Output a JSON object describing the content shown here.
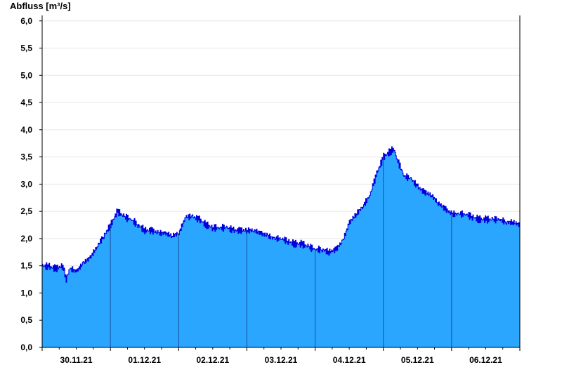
{
  "chart_data": {
    "type": "area",
    "title": "",
    "ylabel": "Abfluss [m³/s]",
    "xlabel": "",
    "ylim": [
      0,
      6.1
    ],
    "yticks": [
      "0,0",
      "0,5",
      "1,0",
      "1,5",
      "2,0",
      "2,5",
      "3,0",
      "3,5",
      "4,0",
      "4,5",
      "5,0",
      "5,5",
      "6,0"
    ],
    "ytick_values": [
      0,
      0.5,
      1,
      1.5,
      2,
      2.5,
      3,
      3.5,
      4,
      4.5,
      5,
      5.5,
      6
    ],
    "x_unit": "days",
    "xlim": [
      0,
      7
    ],
    "xticks": [
      "30.11.21",
      "01.12.21",
      "02.12.21",
      "03.12.21",
      "04.12.21",
      "05.12.21",
      "06.12.21"
    ],
    "xtick_values": [
      0.5,
      1.5,
      2.5,
      3.5,
      4.5,
      5.5,
      6.5
    ],
    "day_boundaries": [
      1,
      2,
      3,
      4,
      5,
      6
    ],
    "grid": true,
    "colors": {
      "fill": "#2aa6ff",
      "line": "#0000dd",
      "grid": "#e6e6e6",
      "axis": "#000000"
    },
    "series": [
      {
        "x": [
          0,
          0.1,
          0.2,
          0.3,
          0.35,
          0.4,
          0.5,
          0.6,
          0.7,
          0.8,
          0.9,
          1.0,
          1.1,
          1.2,
          1.3,
          1.4,
          1.5,
          1.6,
          1.7,
          1.8,
          1.9,
          2.0,
          2.1,
          2.2,
          2.3,
          2.4,
          2.5,
          2.6,
          2.7,
          2.8,
          2.9,
          3.0,
          3.1,
          3.2,
          3.3,
          3.4,
          3.5,
          3.6,
          3.7,
          3.8,
          3.9,
          4.0,
          4.1,
          4.2,
          4.3,
          4.4,
          4.5,
          4.6,
          4.7,
          4.8,
          4.85,
          4.9,
          5.0,
          5.1,
          5.15,
          5.2,
          5.3,
          5.4,
          5.5,
          5.6,
          5.7,
          5.8,
          5.9,
          6.0,
          6.1,
          6.2,
          6.3,
          6.4,
          6.5,
          6.6,
          6.7,
          6.8,
          6.9,
          7.0
        ],
        "y": [
          1.5,
          1.48,
          1.45,
          1.5,
          1.25,
          1.45,
          1.4,
          1.55,
          1.65,
          1.85,
          2.05,
          2.25,
          2.5,
          2.4,
          2.35,
          2.25,
          2.15,
          2.15,
          2.1,
          2.1,
          2.05,
          2.1,
          2.4,
          2.4,
          2.35,
          2.25,
          2.2,
          2.2,
          2.2,
          2.15,
          2.15,
          2.15,
          2.15,
          2.1,
          2.05,
          2.0,
          2.0,
          1.95,
          1.9,
          1.9,
          1.85,
          1.8,
          1.8,
          1.75,
          1.8,
          1.95,
          2.3,
          2.45,
          2.6,
          2.8,
          3.0,
          3.2,
          3.5,
          3.6,
          3.65,
          3.45,
          3.15,
          3.1,
          2.95,
          2.85,
          2.8,
          2.65,
          2.55,
          2.45,
          2.45,
          2.45,
          2.4,
          2.35,
          2.35,
          2.35,
          2.35,
          2.3,
          2.3,
          2.25
        ]
      }
    ]
  }
}
